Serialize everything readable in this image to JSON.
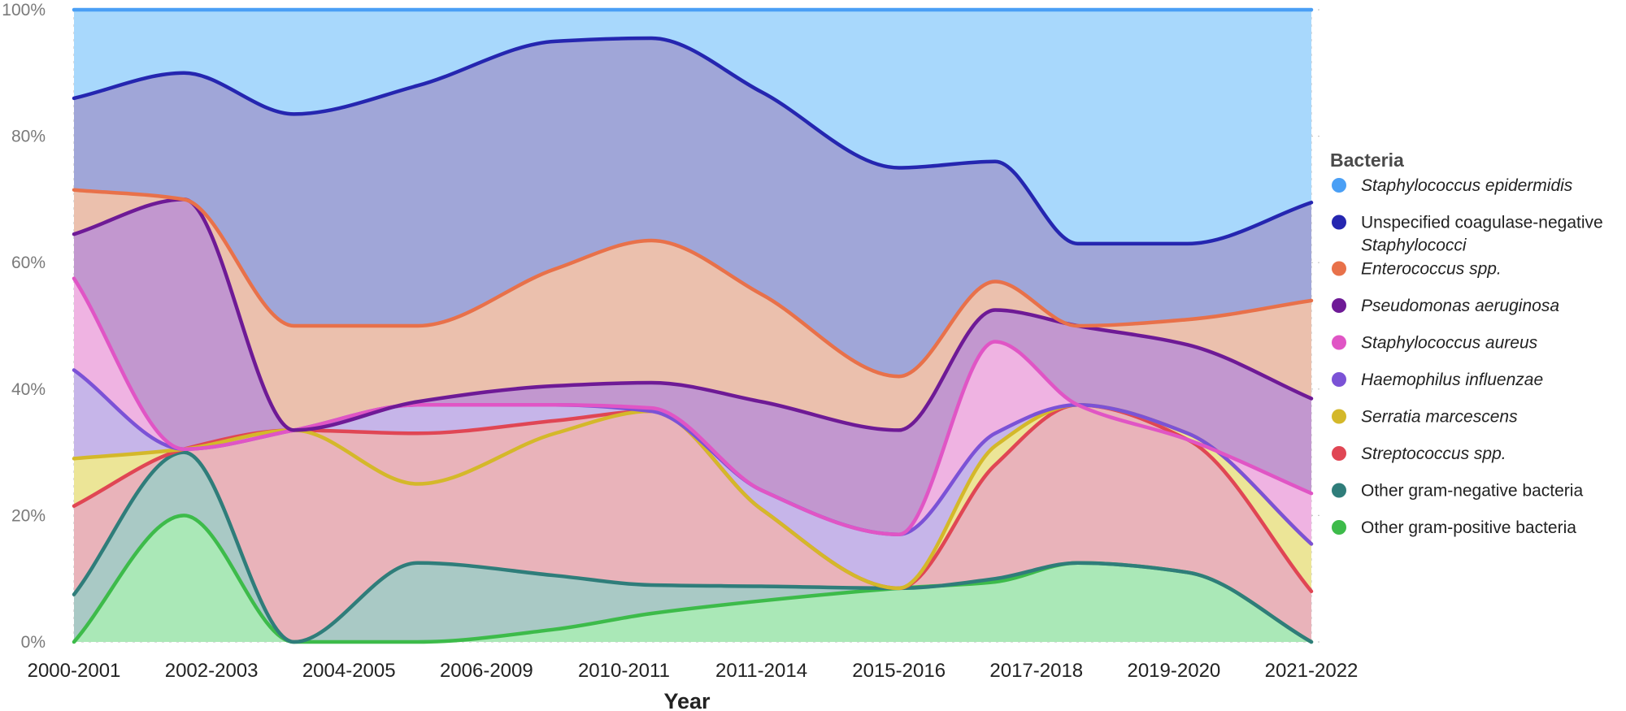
{
  "chart_data": {
    "type": "area",
    "stacking": "cumulative-percent",
    "title": "",
    "xlabel": "Year",
    "ylabel": "",
    "ylim": [
      0,
      100
    ],
    "y_ticks": [
      "0%",
      "20%",
      "40%",
      "60%",
      "80%",
      "100%"
    ],
    "grid": true,
    "categories": [
      "2000-2001",
      "2002-2003",
      "2004-2005",
      "2006-2009",
      "2010-2011",
      "2011-2014",
      "2015-2016",
      "2017-2018",
      "2019-2020",
      "2021-2022"
    ],
    "x_positions": [
      0,
      1,
      2,
      3,
      4,
      5,
      6,
      7,
      8,
      9
    ],
    "legend_title": "Bacteria",
    "legend_position": "right",
    "series": [
      {
        "name": "Staphylococcus epidermidis",
        "italic": true,
        "color": "#4a9ff5",
        "fill": "#a8d8fc",
        "points": [
          [
            0,
            100
          ],
          [
            9,
            100
          ]
        ]
      },
      {
        "name": "Unspecified coagulase-negative Staphylococci",
        "name_lines": [
          "Unspecified coagulase-negative",
          "Staphylococci"
        ],
        "italic_lines": [
          false,
          true
        ],
        "color": "#2526b0",
        "fill": "#a0a6d8",
        "points": [
          [
            0,
            86
          ],
          [
            0.8,
            90
          ],
          [
            1.6,
            83.5
          ],
          [
            2.5,
            88
          ],
          [
            3.5,
            95
          ],
          [
            4.2,
            95.5
          ],
          [
            5.0,
            87
          ],
          [
            6.0,
            75
          ],
          [
            6.7,
            76
          ],
          [
            7.3,
            63
          ],
          [
            8.1,
            63
          ],
          [
            9,
            69.5
          ]
        ]
      },
      {
        "name": "Enterococcus spp.",
        "italic": true,
        "color": "#e8714a",
        "fill": "#ebc0ad",
        "points": [
          [
            0,
            71.5
          ],
          [
            0.8,
            70
          ],
          [
            1.6,
            50
          ],
          [
            2.5,
            50
          ],
          [
            3.5,
            59
          ],
          [
            4.2,
            63.5
          ],
          [
            5.0,
            55
          ],
          [
            6.0,
            42
          ],
          [
            6.7,
            57
          ],
          [
            7.3,
            50
          ],
          [
            8.1,
            51
          ],
          [
            9,
            54
          ]
        ]
      },
      {
        "name": "Pseudomonas aeruginosa",
        "italic": true,
        "color": "#6e1a96",
        "fill": "#c297cf",
        "points": [
          [
            0,
            64.5
          ],
          [
            0.8,
            70
          ],
          [
            1.6,
            33.5
          ],
          [
            2.5,
            38
          ],
          [
            3.5,
            40.5
          ],
          [
            4.2,
            41
          ],
          [
            5.0,
            38
          ],
          [
            6.0,
            33.5
          ],
          [
            6.7,
            52.5
          ],
          [
            7.3,
            50
          ],
          [
            8.1,
            47
          ],
          [
            9,
            38.5
          ]
        ]
      },
      {
        "name": "Staphylococcus aureus",
        "italic": true,
        "color": "#e055c5",
        "fill": "#efb3e2",
        "points": [
          [
            0,
            57.5
          ],
          [
            0.8,
            30.5
          ],
          [
            1.6,
            33.5
          ],
          [
            2.5,
            37.5
          ],
          [
            3.5,
            37.5
          ],
          [
            4.2,
            37
          ],
          [
            5.0,
            24
          ],
          [
            6.0,
            17
          ],
          [
            6.7,
            47.5
          ],
          [
            7.3,
            37.5
          ],
          [
            8.1,
            32
          ],
          [
            9,
            23.5
          ]
        ]
      },
      {
        "name": "Haemophilus influenzae",
        "italic": true,
        "color": "#7b52d6",
        "fill": "#c6b5e9",
        "points": [
          [
            0,
            43
          ],
          [
            0.8,
            30.5
          ],
          [
            1.6,
            33.5
          ],
          [
            2.5,
            37.5
          ],
          [
            3.5,
            37.5
          ],
          [
            4.2,
            36.5
          ],
          [
            5.0,
            24
          ],
          [
            6.0,
            17
          ],
          [
            6.7,
            33
          ],
          [
            7.3,
            37.5
          ],
          [
            8.1,
            33
          ],
          [
            9,
            15.5
          ]
        ]
      },
      {
        "name": "Serratia marcescens",
        "italic": true,
        "color": "#d4b82a",
        "fill": "#ece597",
        "points": [
          [
            0,
            29
          ],
          [
            0.8,
            30.5
          ],
          [
            1.6,
            33.5
          ],
          [
            2.5,
            25
          ],
          [
            3.5,
            33
          ],
          [
            4.2,
            36.5
          ],
          [
            5.0,
            21
          ],
          [
            6.0,
            8.5
          ],
          [
            6.7,
            31
          ],
          [
            7.3,
            37.5
          ],
          [
            8.1,
            33
          ],
          [
            9,
            15.5
          ]
        ]
      },
      {
        "name": "Streptococcus spp.",
        "italic": true,
        "color": "#e04654",
        "fill": "#e9b3ba",
        "points": [
          [
            0,
            21.5
          ],
          [
            0.8,
            30.5
          ],
          [
            1.6,
            33.5
          ],
          [
            2.5,
            33
          ],
          [
            3.5,
            35
          ],
          [
            4.2,
            36.5
          ],
          [
            5.0,
            21
          ],
          [
            6.0,
            8.5
          ],
          [
            6.7,
            28
          ],
          [
            7.3,
            37.5
          ],
          [
            8.1,
            32
          ],
          [
            9,
            8
          ]
        ]
      },
      {
        "name": "Other gram-negative bacteria",
        "italic": false,
        "color": "#2f7d7a",
        "fill": "#a9c9c5",
        "points": [
          [
            0,
            7.5
          ],
          [
            0.8,
            30
          ],
          [
            1.6,
            0
          ],
          [
            2.5,
            12.5
          ],
          [
            3.5,
            10.5
          ],
          [
            4.2,
            9
          ],
          [
            5.0,
            8.8
          ],
          [
            6.0,
            8.5
          ],
          [
            6.7,
            10
          ],
          [
            7.3,
            12.5
          ],
          [
            8.1,
            11
          ],
          [
            9,
            0
          ]
        ]
      },
      {
        "name": "Other gram-positive bacteria",
        "italic": false,
        "color": "#3dbb4a",
        "fill": "#aae8b7",
        "points": [
          [
            0,
            0
          ],
          [
            0.8,
            20
          ],
          [
            1.6,
            0
          ],
          [
            2.5,
            0
          ],
          [
            3.5,
            2
          ],
          [
            4.2,
            4.5
          ],
          [
            5.0,
            6.5
          ],
          [
            6.0,
            8.5
          ],
          [
            6.7,
            9.5
          ],
          [
            7.3,
            12.5
          ],
          [
            8.1,
            11
          ],
          [
            9,
            0
          ]
        ]
      }
    ]
  }
}
